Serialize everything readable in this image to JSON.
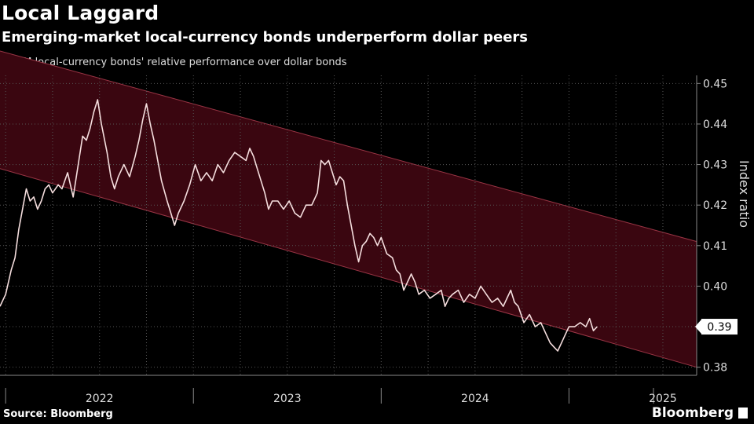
{
  "header": {
    "title": "Local Laggard",
    "subtitle": "Emerging-market local-currency bonds underperform dollar peers",
    "legend_label": "EM local-currency bonds' relative performance over dollar bonds"
  },
  "footer": {
    "source": "Source: Bloomberg",
    "brand": "Bloomberg"
  },
  "colors": {
    "background": "#000000",
    "line": "#f5dede",
    "channel_fill": "#3a0610",
    "channel_edge": "#9a3545",
    "grid": "#555555"
  },
  "chart_data": {
    "type": "line",
    "title": "Local Laggard",
    "ylabel": "Index ratio",
    "xlabel": "",
    "ylim": [
      0.378,
      0.452
    ],
    "yticks": [
      0.38,
      0.39,
      0.4,
      0.41,
      0.42,
      0.43,
      0.44,
      0.45
    ],
    "ytick_labels": [
      "0.38",
      "0.39",
      "0.40",
      "0.41",
      "0.42",
      "0.43",
      "0.44",
      "0.45"
    ],
    "xlim": [
      2021.47,
      2025.18
    ],
    "year_labels": [
      {
        "x": 2022.0,
        "label": "2022"
      },
      {
        "x": 2023.0,
        "label": "2023"
      },
      {
        "x": 2024.0,
        "label": "2024"
      },
      {
        "x": 2025.0,
        "label": "2025"
      }
    ],
    "year_separators": [
      2021.5,
      2022.5,
      2023.5,
      2024.5,
      2024.95
    ],
    "last_value_label": "0.39",
    "last_value": 0.39,
    "channel": {
      "upper": [
        [
          2021.47,
          0.458
        ],
        [
          2025.18,
          0.411
        ]
      ],
      "lower": [
        [
          2021.47,
          0.429
        ],
        [
          2025.18,
          0.38
        ]
      ]
    },
    "series": [
      {
        "name": "EM local-currency bonds' relative performance over dollar bonds",
        "points": [
          [
            2021.47,
            0.395
          ],
          [
            2021.5,
            0.398
          ],
          [
            2021.53,
            0.404
          ],
          [
            2021.55,
            0.407
          ],
          [
            2021.57,
            0.414
          ],
          [
            2021.59,
            0.419
          ],
          [
            2021.61,
            0.424
          ],
          [
            2021.63,
            0.421
          ],
          [
            2021.65,
            0.422
          ],
          [
            2021.67,
            0.419
          ],
          [
            2021.69,
            0.421
          ],
          [
            2021.71,
            0.424
          ],
          [
            2021.73,
            0.425
          ],
          [
            2021.75,
            0.423
          ],
          [
            2021.78,
            0.425
          ],
          [
            2021.8,
            0.424
          ],
          [
            2021.83,
            0.428
          ],
          [
            2021.86,
            0.422
          ],
          [
            2021.89,
            0.431
          ],
          [
            2021.91,
            0.437
          ],
          [
            2021.93,
            0.436
          ],
          [
            2021.95,
            0.439
          ],
          [
            2021.97,
            0.443
          ],
          [
            2021.99,
            0.446
          ],
          [
            2022.01,
            0.44
          ],
          [
            2022.04,
            0.433
          ],
          [
            2022.06,
            0.427
          ],
          [
            2022.08,
            0.424
          ],
          [
            2022.1,
            0.427
          ],
          [
            2022.13,
            0.43
          ],
          [
            2022.16,
            0.427
          ],
          [
            2022.19,
            0.432
          ],
          [
            2022.21,
            0.436
          ],
          [
            2022.23,
            0.441
          ],
          [
            2022.25,
            0.445
          ],
          [
            2022.27,
            0.44
          ],
          [
            2022.29,
            0.436
          ],
          [
            2022.31,
            0.431
          ],
          [
            2022.33,
            0.426
          ],
          [
            2022.36,
            0.421
          ],
          [
            2022.38,
            0.418
          ],
          [
            2022.4,
            0.415
          ],
          [
            2022.42,
            0.418
          ],
          [
            2022.45,
            0.421
          ],
          [
            2022.48,
            0.425
          ],
          [
            2022.51,
            0.43
          ],
          [
            2022.54,
            0.426
          ],
          [
            2022.57,
            0.428
          ],
          [
            2022.6,
            0.426
          ],
          [
            2022.63,
            0.43
          ],
          [
            2022.66,
            0.428
          ],
          [
            2022.69,
            0.431
          ],
          [
            2022.72,
            0.433
          ],
          [
            2022.75,
            0.432
          ],
          [
            2022.78,
            0.431
          ],
          [
            2022.8,
            0.434
          ],
          [
            2022.82,
            0.432
          ],
          [
            2022.84,
            0.429
          ],
          [
            2022.86,
            0.426
          ],
          [
            2022.88,
            0.423
          ],
          [
            2022.9,
            0.419
          ],
          [
            2022.92,
            0.421
          ],
          [
            2022.95,
            0.421
          ],
          [
            2022.98,
            0.419
          ],
          [
            2023.01,
            0.421
          ],
          [
            2023.04,
            0.418
          ],
          [
            2023.07,
            0.417
          ],
          [
            2023.1,
            0.42
          ],
          [
            2023.13,
            0.42
          ],
          [
            2023.16,
            0.423
          ],
          [
            2023.18,
            0.431
          ],
          [
            2023.2,
            0.43
          ],
          [
            2023.22,
            0.431
          ],
          [
            2023.24,
            0.428
          ],
          [
            2023.26,
            0.425
          ],
          [
            2023.28,
            0.427
          ],
          [
            2023.3,
            0.426
          ],
          [
            2023.32,
            0.42
          ],
          [
            2023.34,
            0.415
          ],
          [
            2023.36,
            0.41
          ],
          [
            2023.38,
            0.406
          ],
          [
            2023.4,
            0.41
          ],
          [
            2023.42,
            0.411
          ],
          [
            2023.44,
            0.413
          ],
          [
            2023.46,
            0.412
          ],
          [
            2023.48,
            0.41
          ],
          [
            2023.5,
            0.412
          ],
          [
            2023.53,
            0.408
          ],
          [
            2023.56,
            0.407
          ],
          [
            2023.58,
            0.404
          ],
          [
            2023.6,
            0.403
          ],
          [
            2023.62,
            0.399
          ],
          [
            2023.64,
            0.401
          ],
          [
            2023.66,
            0.403
          ],
          [
            2023.68,
            0.401
          ],
          [
            2023.7,
            0.398
          ],
          [
            2023.73,
            0.399
          ],
          [
            2023.76,
            0.397
          ],
          [
            2023.79,
            0.398
          ],
          [
            2023.82,
            0.399
          ],
          [
            2023.84,
            0.395
          ],
          [
            2023.86,
            0.397
          ],
          [
            2023.88,
            0.398
          ],
          [
            2023.91,
            0.399
          ],
          [
            2023.94,
            0.396
          ],
          [
            2023.97,
            0.398
          ],
          [
            2024.0,
            0.397
          ],
          [
            2024.03,
            0.4
          ],
          [
            2024.06,
            0.398
          ],
          [
            2024.09,
            0.396
          ],
          [
            2024.12,
            0.397
          ],
          [
            2024.15,
            0.395
          ],
          [
            2024.17,
            0.397
          ],
          [
            2024.19,
            0.399
          ],
          [
            2024.21,
            0.396
          ],
          [
            2024.23,
            0.395
          ],
          [
            2024.26,
            0.391
          ],
          [
            2024.29,
            0.393
          ],
          [
            2024.32,
            0.39
          ],
          [
            2024.35,
            0.391
          ],
          [
            2024.38,
            0.388
          ],
          [
            2024.4,
            0.386
          ],
          [
            2024.42,
            0.385
          ],
          [
            2024.44,
            0.384
          ],
          [
            2024.46,
            0.386
          ],
          [
            2024.48,
            0.388
          ],
          [
            2024.5,
            0.39
          ],
          [
            2024.53,
            0.39
          ],
          [
            2024.56,
            0.391
          ],
          [
            2024.59,
            0.39
          ],
          [
            2024.61,
            0.392
          ],
          [
            2024.63,
            0.389
          ],
          [
            2024.65,
            0.39
          ]
        ]
      }
    ]
  }
}
